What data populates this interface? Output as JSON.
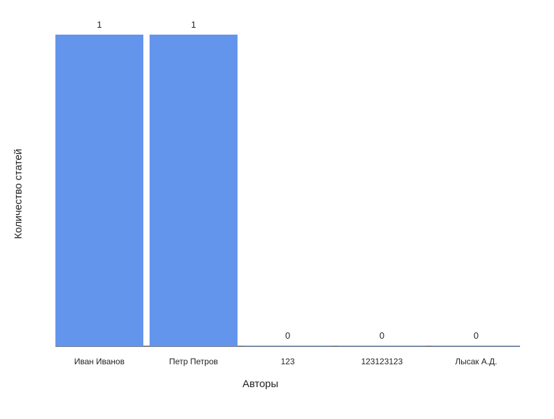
{
  "chart_data": {
    "type": "bar",
    "title": "",
    "xlabel": "Авторы",
    "ylabel": "Количество статей",
    "categories": [
      "Иван Иванов",
      "Петр Петров",
      "123",
      "123123123",
      "Лысак А.Д."
    ],
    "values": [
      1,
      1,
      0,
      0,
      0
    ],
    "ylim": [
      0,
      1
    ],
    "grid": false,
    "data_labels": true,
    "bar_color": "#6495ED",
    "axis_color": "#000000"
  }
}
